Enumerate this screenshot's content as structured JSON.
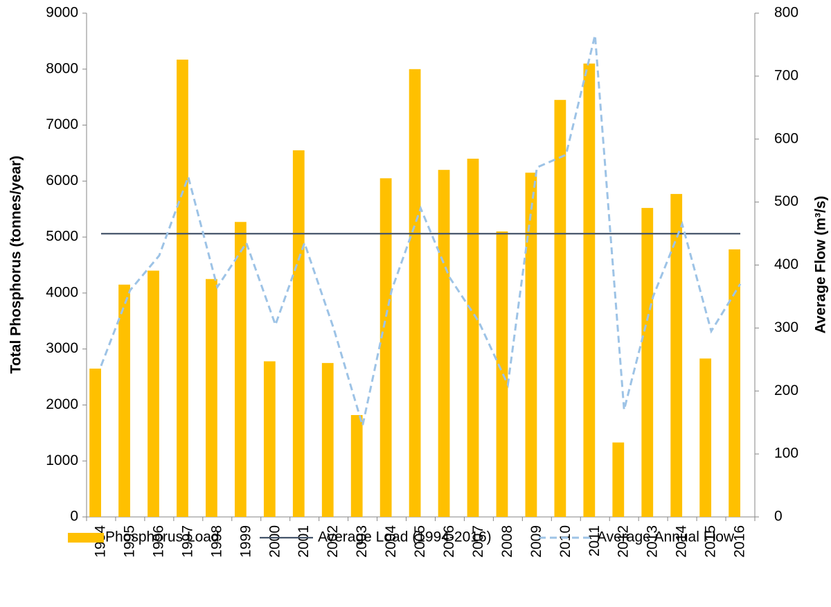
{
  "chart_data": {
    "type": "bar",
    "y_label": "Total Phosphorus  (tonnes/year)",
    "y2_label": "Average Flow (m³/s)",
    "categories": [
      "1994",
      "1995",
      "1996",
      "1997",
      "1998",
      "1999",
      "2000",
      "2001",
      "2002",
      "2003",
      "2004",
      "2005",
      "2006",
      "2007",
      "2008",
      "2009",
      "2010",
      "2011",
      "2012",
      "2013",
      "2014",
      "2015",
      "2016"
    ],
    "series": [
      {
        "name": "Phosphorus Load",
        "type": "bar",
        "color": "#FFC000",
        "values": [
          2650,
          4150,
          4400,
          8170,
          4250,
          5270,
          2780,
          6550,
          2750,
          1820,
          6050,
          8000,
          6200,
          6400,
          5100,
          6150,
          7450,
          8100,
          1330,
          5520,
          5770,
          2830,
          4780
        ]
      },
      {
        "name": "Average Load (1994-2016)",
        "type": "line",
        "color": "#44546A",
        "values": [
          5060,
          5060,
          5060,
          5060,
          5060,
          5060,
          5060,
          5060,
          5060,
          5060,
          5060,
          5060,
          5060,
          5060,
          5060,
          5060,
          5060,
          5060,
          5060,
          5060,
          5060,
          5060,
          5060
        ]
      },
      {
        "name": "Average Annual Flow",
        "type": "line",
        "dashed": true,
        "axis": "y2",
        "color": "#9DC3E6",
        "values": [
          240,
          360,
          415,
          540,
          365,
          435,
          305,
          435,
          300,
          145,
          360,
          490,
          380,
          310,
          210,
          555,
          575,
          765,
          170,
          350,
          465,
          295,
          370
        ]
      }
    ],
    "ylim": [
      0,
      9000
    ],
    "yticks": [
      0,
      1000,
      2000,
      3000,
      4000,
      5000,
      6000,
      7000,
      8000,
      9000
    ],
    "y2lim": [
      0,
      800
    ],
    "y2ticks": [
      0,
      100,
      200,
      300,
      400,
      500,
      600,
      700,
      800
    ],
    "grid": false,
    "legend": "bottom"
  }
}
